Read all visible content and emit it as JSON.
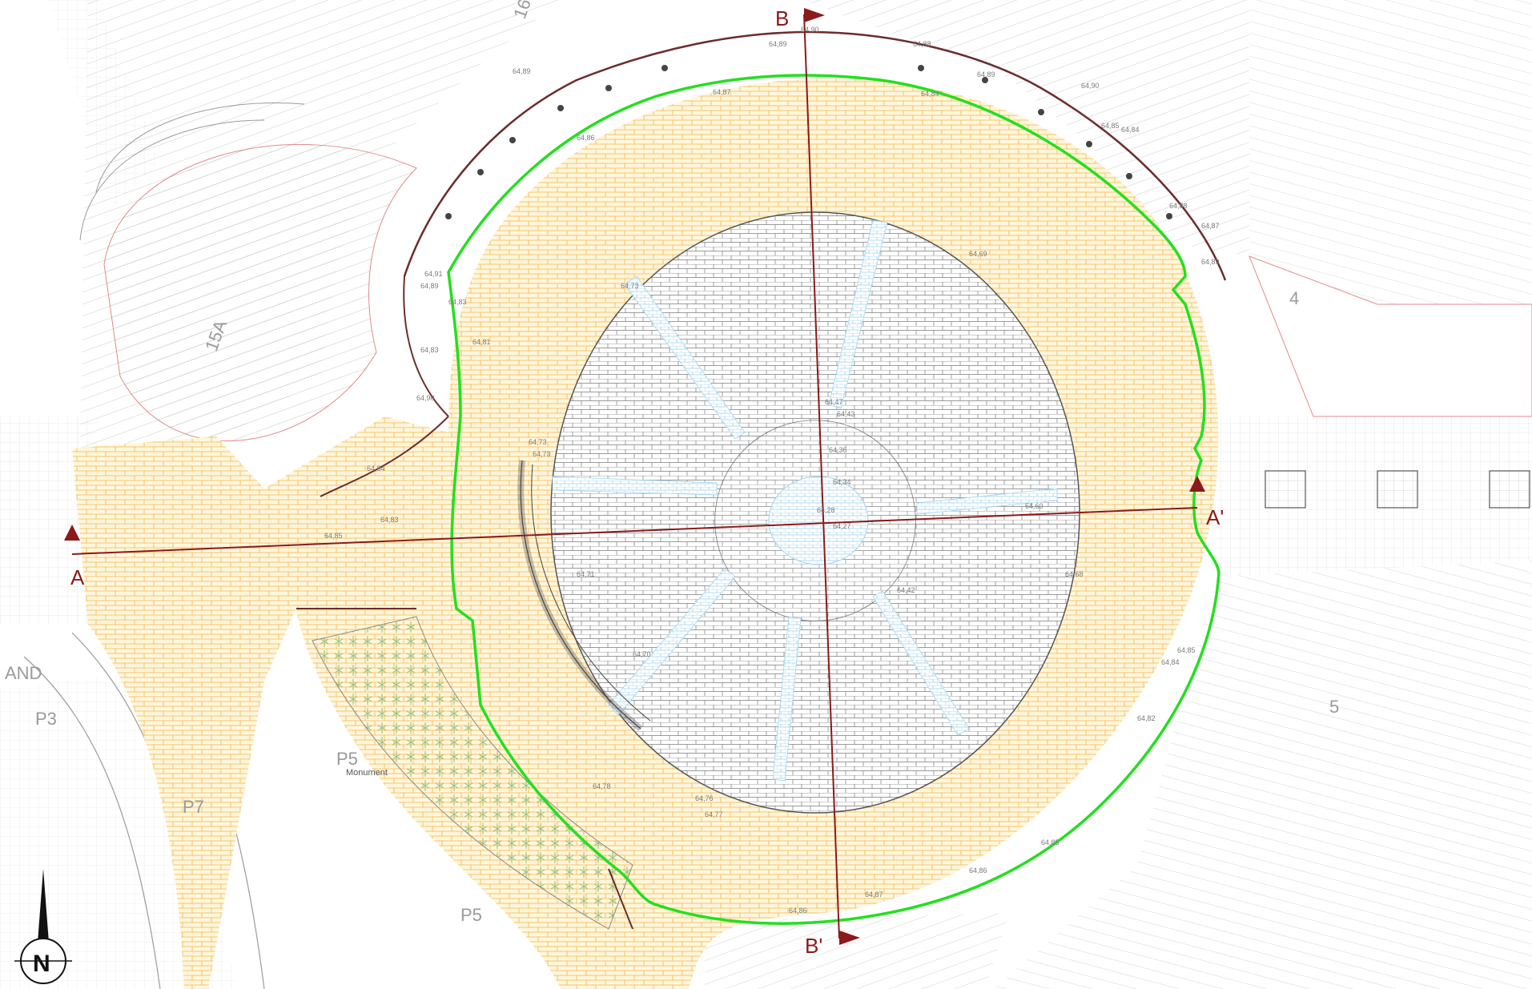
{
  "colors": {
    "boundary": "#22e01e",
    "section_line": "#8b1a1a",
    "paving_fill": "#fff6dc",
    "paving_brick": "#f3b54a",
    "grey_paving": "#7b7b7b",
    "water_channel": "#9fd3ee",
    "contour": "#9a9a9a",
    "red_outline": "#e08a8a",
    "dark_wall": "#6b2d2d",
    "green_planting": "#8cbf7a"
  },
  "section_labels": {
    "a": "A",
    "a_prime": "A'",
    "b": "B",
    "b_prime": "B'"
  },
  "zone_labels": {
    "p3": "P3",
    "p5": "P5",
    "p7": "P7",
    "p5b": "P5",
    "monument": "Monument",
    "zone_15a": "15A",
    "zone_4": "4",
    "zone_5": "5",
    "zone_16": "16",
    "zone_and": "AND"
  },
  "north": {
    "letter": "N",
    "icon": "north-arrow-icon"
  },
  "spot_levels": [
    "64,89",
    "64,90",
    "64,89",
    "64,88",
    "64,89",
    "64,90",
    "64,91",
    "64,89",
    "64,88",
    "64,89",
    "64,90",
    "64,84",
    "64,85",
    "64,83",
    "64,83",
    "64,86",
    "64,87",
    "64,84",
    "64,83",
    "64,81",
    "64,78",
    "64,76",
    "64,77",
    "64,73",
    "64,73",
    "64,73",
    "64,71",
    "64,70",
    "64,69",
    "64,47",
    "64,43",
    "64,36",
    "64,34",
    "64,28",
    "64,27",
    "64,42",
    "64,60",
    "64,68",
    "64,82",
    "64,85",
    "64,86",
    "64,85",
    "64,84",
    "64,87",
    "64,86",
    "64,85",
    "64,84",
    "64,87"
  ]
}
